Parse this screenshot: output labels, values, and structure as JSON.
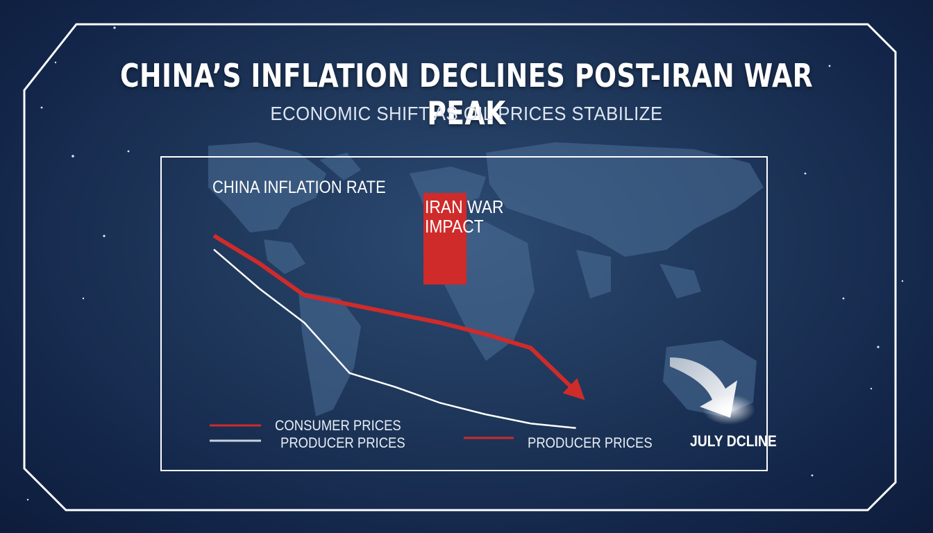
{
  "title": "CHINA’S INFLATION DECLINES POST-IRAN WAR PEAK",
  "subtitle": "ECONOMIC SHIFT AS OIL PRICES STABILIZE",
  "chart_data": {
    "type": "line",
    "title": "CHINA INFLATION RATE",
    "xlabel": "",
    "ylabel": "",
    "grid": false,
    "x": [
      0,
      1,
      2,
      3,
      4,
      5,
      6,
      7,
      8,
      9,
      10
    ],
    "series": [
      {
        "name": "CONSUMER PRICES",
        "color": "#cc2a2a",
        "values": [
          88,
          76,
          62,
          58,
          54,
          50,
          45,
          39,
          20,
          null,
          null
        ]
      },
      {
        "name": "PRODUCER PRICES",
        "color": "#ffffff",
        "values": [
          82,
          65,
          50,
          28,
          22,
          15,
          10,
          6,
          4,
          null,
          null
        ]
      }
    ],
    "annotations": [
      {
        "label": "IRAN WAR\nIMPACT",
        "color": "#cc2a2a",
        "type": "bar-highlight"
      },
      {
        "label": "JULY DCLINE",
        "type": "arrow"
      }
    ],
    "legend": [
      {
        "label": "CONSUMER PRICES",
        "color": "#cc2a2a"
      },
      {
        "label": "PRODUCER PRICES",
        "color": "#ffffff"
      },
      {
        "label": "PRODUCER PRICES",
        "color": "#cc2a2a"
      }
    ],
    "legend_position": "bottom-left"
  }
}
